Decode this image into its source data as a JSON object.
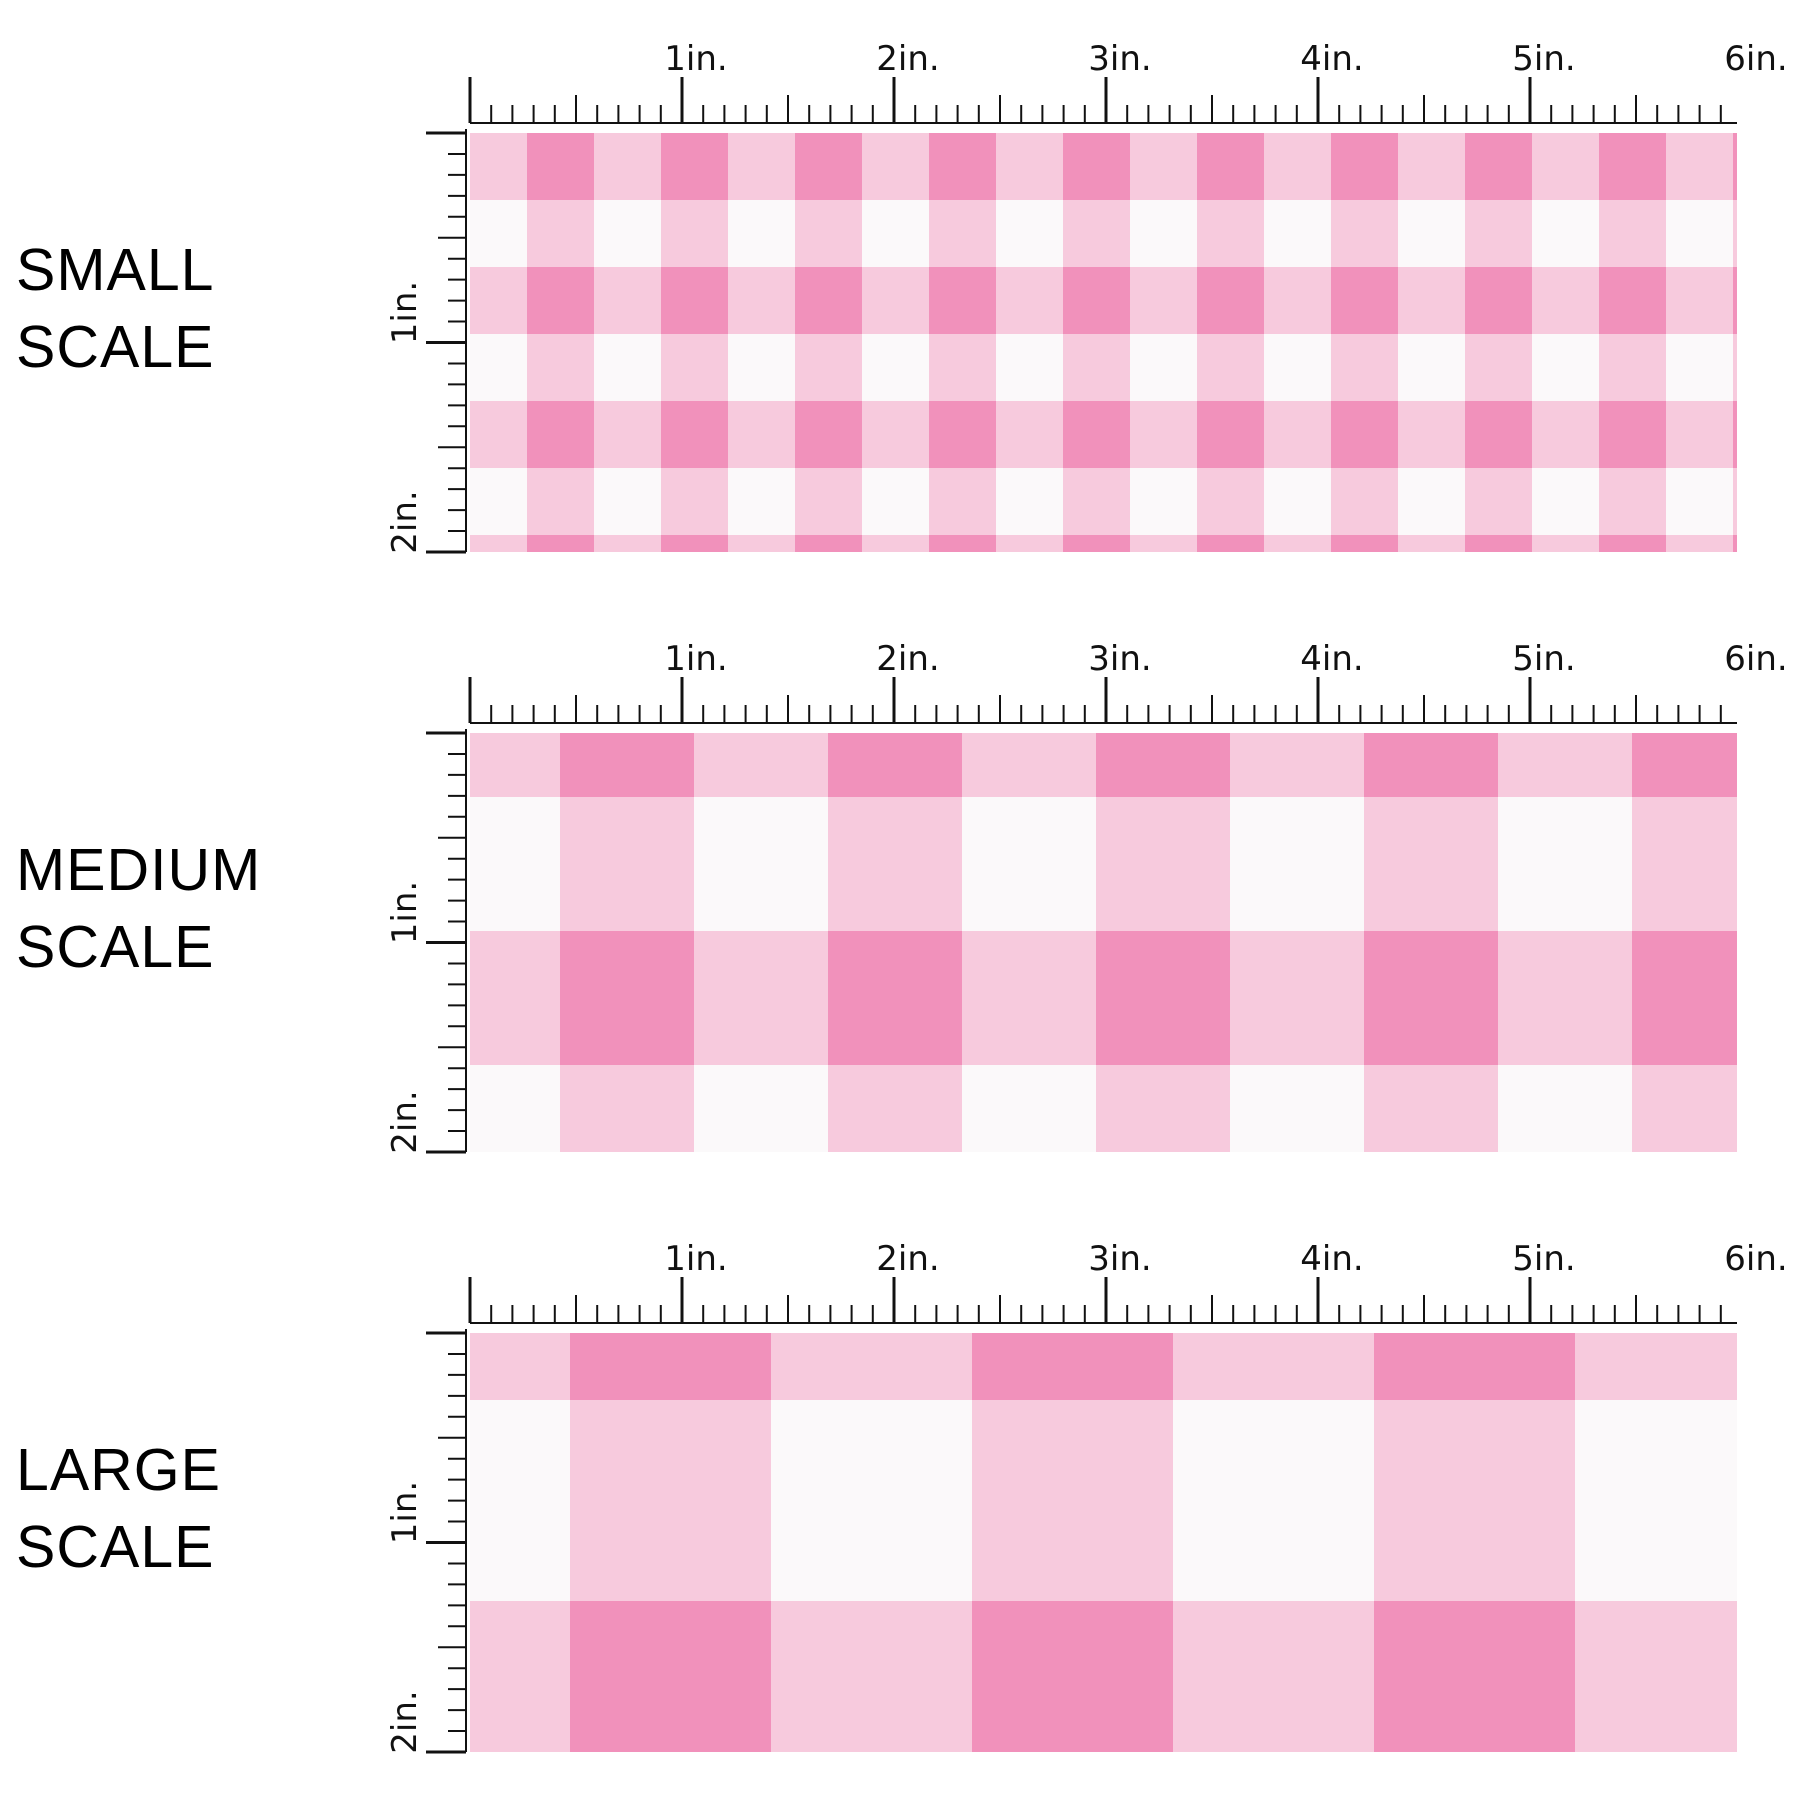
{
  "units": [
    "1in.",
    "2in.",
    "3in.",
    "4in.",
    "5in.",
    "6in."
  ],
  "side_units": [
    "1in.",
    "2in."
  ],
  "colors": {
    "background": "#ffffff",
    "dark_pink": "#f191bb",
    "mid_pink": "#f7cadd",
    "light": "#fbf9fa",
    "ruler": "#111111"
  },
  "sections": [
    {
      "id": "small",
      "label_line1": "SMALL",
      "label_line2": "SCALE",
      "check_size_in": 0.32
    },
    {
      "id": "medium",
      "label_line1": "MEDIUM",
      "label_line2": "SCALE",
      "check_size_in": 0.64
    },
    {
      "id": "large",
      "label_line1": "LARGE",
      "label_line2": "SCALE",
      "check_size_in": 0.95
    }
  ]
}
